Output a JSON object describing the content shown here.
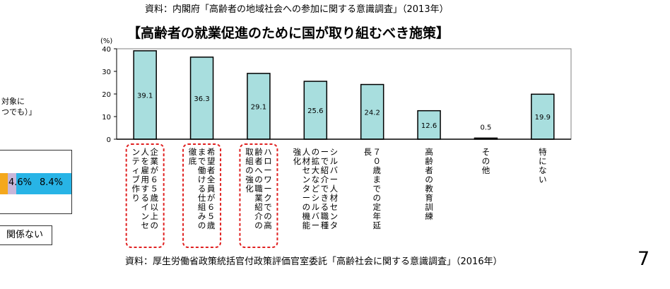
{
  "source_top": "資料：内閣府「高齢者の地域社会への参加に関する意識調査」（2013年）",
  "source_bottom": "資料：厚生労働省政策統括官付政策評価官室委託「高齢社会に関する意識調査」（2016年）",
  "page_number": "7",
  "left_fragment": {
    "line1": "対象に",
    "line2": "つでも）」",
    "bar_labels": [
      "4.6%",
      "8.4%"
    ],
    "legend_text": "関係ない",
    "colors": {
      "orange": "#f4a81d",
      "lavender": "#c8b6d9",
      "cyan": "#28b4e6"
    }
  },
  "chart_data": {
    "type": "bar",
    "title": "【高齢者の就業促進のために国が取り組むべき施策】",
    "ylabel": "(%)",
    "ylim": [
      0,
      40
    ],
    "yticks": [
      0,
      10,
      20,
      30,
      40
    ],
    "grid": false,
    "bar_color": "#a8dede",
    "highlight_color": "#e02020",
    "highlighted": [
      0,
      1,
      2
    ],
    "categories": [
      "企業が６５歳以上の人を雇用するインセンティブ作り",
      "希望者全員が６５歳まで働ける仕組みの徹底",
      "ハローワークでの高齢者への職業紹介の取組の強化",
      "シルバー人材センターで紹介できる職種の拡大などシルバー人材センターの機能強化",
      "７０歳までの定年延長",
      "高齢者の教育訓練",
      "その他",
      "特にない"
    ],
    "values": [
      39.1,
      36.3,
      29.1,
      25.6,
      24.2,
      12.6,
      0.5,
      19.9
    ],
    "value_labels": [
      "39.1",
      "36.3",
      "29.1",
      "25.6",
      "24.2",
      "12.6",
      "0.5",
      "19.9"
    ]
  }
}
